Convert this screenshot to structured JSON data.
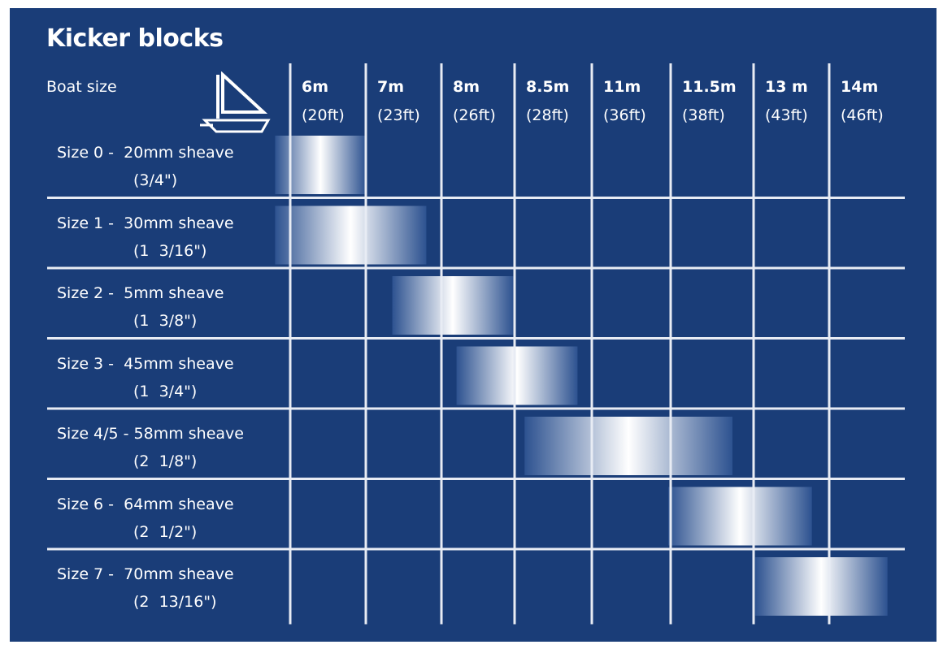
{
  "title": "Kicker blocks",
  "boat_size_label": "Boat size",
  "colors": {
    "background": "#1a3d78",
    "grid": "#e8ecf4",
    "text": "#ffffff",
    "bar_gradient": [
      "#1a3d78",
      "#ffffff",
      "#1a3d78"
    ]
  },
  "icons": [
    "sailboat-icon"
  ],
  "chart_data": {
    "type": "bar",
    "orientation": "horizontal-range",
    "title": "Kicker blocks",
    "x_categories": [
      {
        "metric": "6m",
        "imperial": "(20ft)"
      },
      {
        "metric": "7m",
        "imperial": "(23ft)"
      },
      {
        "metric": "8m",
        "imperial": "(26ft)"
      },
      {
        "metric": "8.5m",
        "imperial": "(28ft)"
      },
      {
        "metric": "11m",
        "imperial": "(36ft)"
      },
      {
        "metric": "11.5m",
        "imperial": "(38ft)"
      },
      {
        "metric": "13 m",
        "imperial": "(43ft)"
      },
      {
        "metric": "14m",
        "imperial": "(46ft)"
      }
    ],
    "rows": [
      {
        "label": "Size 0 -  20mm sheave",
        "sublabel": "(3/4\")",
        "range": [
          -0.2,
          1.0
        ]
      },
      {
        "label": "Size 1 -  30mm sheave",
        "sublabel": "(1  3/16\")",
        "range": [
          -0.2,
          1.8
        ]
      },
      {
        "label": "Size 2 -  5mm sheave",
        "sublabel": "(1  3/8\")",
        "range": [
          1.35,
          2.95
        ]
      },
      {
        "label": "Size 3 -  45mm sheave",
        "sublabel": "(1  3/4\")",
        "range": [
          2.2,
          3.8
        ]
      },
      {
        "label": "Size 4/5 - 58mm sheave",
        "sublabel": "(2  1/8\")",
        "range": [
          3.1,
          5.85
        ]
      },
      {
        "label": "Size 6 -  64mm sheave",
        "sublabel": "(2  1/2\")",
        "range": [
          5.0,
          6.9
        ]
      },
      {
        "label": "Size 7 -  70mm sheave",
        "sublabel": "(2  13/16\")",
        "range": [
          6.15,
          7.9
        ]
      }
    ],
    "grid": true
  }
}
